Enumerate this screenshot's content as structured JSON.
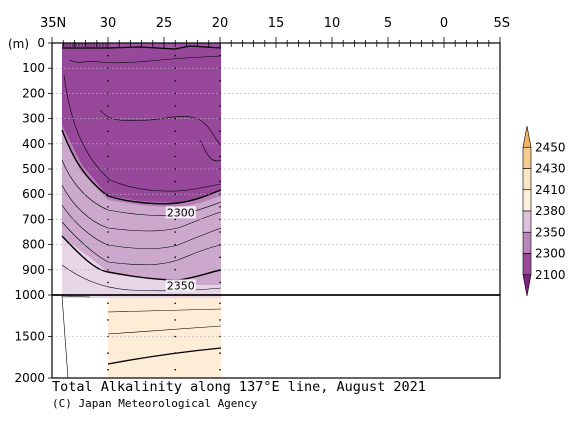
{
  "chart_data": {
    "type": "heatmap",
    "title": "Total Alkalinity along 137°E line, August 2021",
    "credit": "(C) Japan Meteorological Agency",
    "ylabel": "(m)",
    "x_axis": {
      "ticks": [
        {
          "value": 35,
          "label": "35N"
        },
        {
          "value": 30,
          "label": "30"
        },
        {
          "value": 25,
          "label": "25"
        },
        {
          "value": 20,
          "label": "20"
        },
        {
          "value": 15,
          "label": "15"
        },
        {
          "value": 10,
          "label": "10"
        },
        {
          "value": 5,
          "label": "5"
        },
        {
          "value": 0,
          "label": "0"
        },
        {
          "value": -5,
          "label": "5S"
        }
      ],
      "range": [
        35,
        -5
      ]
    },
    "y_axis": {
      "upper": {
        "range": [
          0,
          1000
        ],
        "ticks": [
          "0",
          "100",
          "200",
          "300",
          "400",
          "500",
          "600",
          "700",
          "800",
          "900",
          "1000"
        ]
      },
      "lower": {
        "range": [
          1000,
          2000
        ],
        "ticks": [
          "1500",
          "2000"
        ]
      }
    },
    "colorbar": {
      "levels": [
        "2450",
        "2430",
        "2410",
        "2380",
        "2350",
        "2300",
        "2100"
      ],
      "colors": [
        "#f2b266",
        "#f6cd8f",
        "#fbe6c4",
        "#fdf0dc",
        "#dcc1dc",
        "#b984b9",
        "#9a4a9a",
        "#7e1e7e"
      ]
    },
    "contour_labels": [
      {
        "text": "2300",
        "lat": 23.5,
        "depth": 680
      },
      {
        "text": "2350",
        "lat": 23.5,
        "depth": 970
      }
    ],
    "stations_lat": [
      30,
      24,
      20
    ],
    "data_extent_lat": [
      34,
      20
    ],
    "colors": {
      "frame": "#000000",
      "grid": "#b0b0b0"
    }
  }
}
